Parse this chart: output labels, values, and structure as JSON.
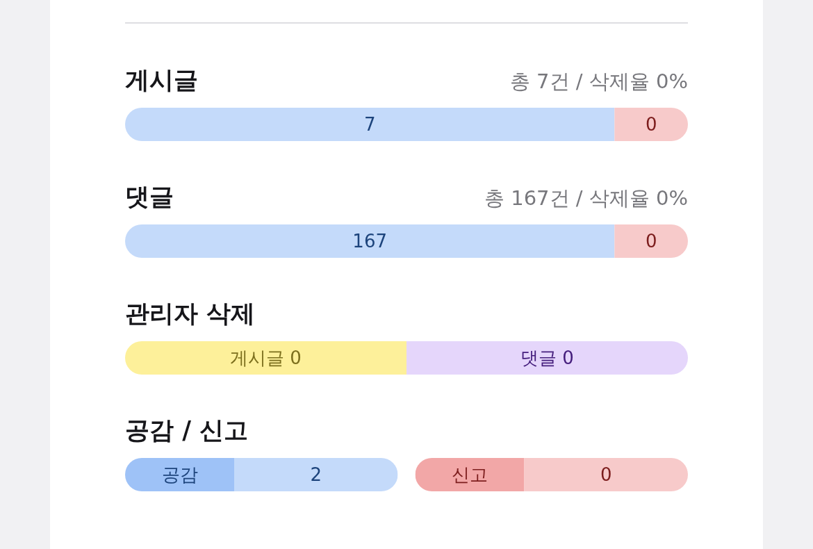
{
  "chart_data": [
    {
      "type": "other",
      "title": "게시글",
      "subtitle": "총 7건 / 삭제율 0%",
      "categories": [
        null,
        null
      ],
      "values": [
        7,
        0
      ],
      "colors": [
        "#c4dafa",
        "#f7caca"
      ],
      "data_labels": true
    },
    {
      "type": "other",
      "title": "댓글",
      "subtitle": "총 167건 / 삭제율 0%",
      "categories": [
        null,
        null
      ],
      "values": [
        167,
        0
      ],
      "colors": [
        "#c4dafa",
        "#f7caca"
      ],
      "data_labels": true
    },
    {
      "type": "other",
      "title": "관리자 삭제",
      "categories": [
        "게시글",
        "댓글"
      ],
      "values": [
        0,
        0
      ],
      "colors": [
        "#fdf09a",
        "#e5d6fb"
      ],
      "data_labels": true
    },
    {
      "type": "other",
      "title": "공감 / 신고",
      "categories": [
        "공감"
      ],
      "values": [
        2
      ],
      "colors": [
        "#c4dafa"
      ],
      "data_labels": true
    },
    {
      "type": "other",
      "categories": [
        "신고"
      ],
      "values": [
        0
      ],
      "colors": [
        "#f7caca"
      ],
      "data_labels": true
    }
  ]
}
